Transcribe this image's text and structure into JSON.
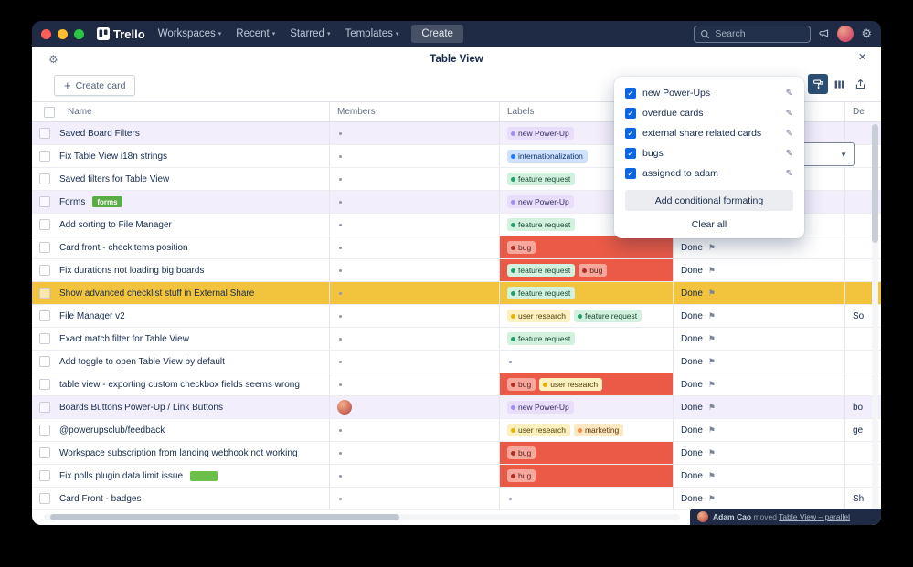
{
  "colors": {
    "accent_blue": "#0c66e4",
    "titlebar_navy": "#1f2b44",
    "cell_red": "#eb5a46",
    "row_yellow": "#f2c43d",
    "row_purple": "#f3eefc",
    "label_green": "#22a06b",
    "label_purple": "#9f8fef"
  },
  "navbar": {
    "app_name": "Trello",
    "items": [
      "Workspaces",
      "Recent",
      "Starred",
      "Templates"
    ],
    "create_label": "Create",
    "search_placeholder": "Search"
  },
  "view": {
    "title": "Table View",
    "create_card_label": "Create card"
  },
  "table": {
    "columns": {
      "name": "Name",
      "members": "Members",
      "labels": "Labels",
      "status": "",
      "desc": "De"
    },
    "rows": [
      {
        "name": "Saved Board Filters",
        "row_bg": "purple",
        "member": "dot",
        "labels": [
          {
            "text": "new Power-Up",
            "color": "purple"
          }
        ],
        "labels_bg": null,
        "status": "",
        "desc": ""
      },
      {
        "name": "Fix Table View i18n strings",
        "row_bg": null,
        "member": "dot",
        "labels": [
          {
            "text": "internationalization",
            "color": "blue"
          }
        ],
        "labels_bg": null,
        "status": "",
        "desc": ""
      },
      {
        "name": "Saved filters for Table View",
        "row_bg": null,
        "member": "dot",
        "labels": [
          {
            "text": "feature request",
            "color": "green"
          }
        ],
        "labels_bg": null,
        "status": "",
        "desc": ""
      },
      {
        "name": "Forms",
        "badge": "forms",
        "row_bg": "purple",
        "member": "dot",
        "labels": [
          {
            "text": "new Power-Up",
            "color": "purple"
          }
        ],
        "labels_bg": null,
        "status": "",
        "desc": ""
      },
      {
        "name": "Add sorting to File Manager",
        "row_bg": null,
        "member": "dot",
        "labels": [
          {
            "text": "feature request",
            "color": "green"
          }
        ],
        "labels_bg": null,
        "status": "",
        "desc": ""
      },
      {
        "name": "Card front - checkitems position",
        "row_bg": null,
        "member": "dot",
        "labels": [
          {
            "text": "bug",
            "color": "red"
          }
        ],
        "labels_bg": "red",
        "status": "Done",
        "desc": ""
      },
      {
        "name": "Fix durations not loading big boards",
        "row_bg": null,
        "member": "dot",
        "labels": [
          {
            "text": "feature request",
            "color": "green"
          },
          {
            "text": "bug",
            "color": "red"
          }
        ],
        "labels_bg": "red",
        "status": "Done",
        "desc": ""
      },
      {
        "name": "Show advanced checklist stuff in External Share",
        "row_bg": "yellow",
        "member": "dot",
        "labels": [
          {
            "text": "feature request",
            "color": "green"
          }
        ],
        "labels_bg": null,
        "status": "Done",
        "desc": ""
      },
      {
        "name": "File Manager v2",
        "row_bg": null,
        "member": "dot",
        "labels": [
          {
            "text": "user research",
            "color": "yellow"
          },
          {
            "text": "feature request",
            "color": "green"
          }
        ],
        "labels_bg": null,
        "status": "Done",
        "desc": "So"
      },
      {
        "name": "Exact match filter for Table View",
        "row_bg": null,
        "member": "dot",
        "labels": [
          {
            "text": "feature request",
            "color": "green"
          }
        ],
        "labels_bg": null,
        "status": "Done",
        "desc": ""
      },
      {
        "name": "Add toggle to open Table View by default",
        "row_bg": null,
        "member": "dot",
        "labels": [],
        "labels_bg": null,
        "status": "Done",
        "desc": ""
      },
      {
        "name": "table view - exporting custom checkbox fields seems wrong",
        "row_bg": null,
        "member": "dot",
        "labels": [
          {
            "text": "bug",
            "color": "red"
          },
          {
            "text": "user research",
            "color": "yellow"
          }
        ],
        "labels_bg": "red",
        "status": "Done",
        "desc": ""
      },
      {
        "name": "Boards Buttons Power-Up / Link Buttons",
        "row_bg": "purple",
        "member": "avatar",
        "labels": [
          {
            "text": "new Power-Up",
            "color": "purple"
          }
        ],
        "labels_bg": null,
        "status": "Done",
        "desc": "bo"
      },
      {
        "name": "@powerupsclub/feedback",
        "row_bg": null,
        "member": "dot",
        "labels": [
          {
            "text": "user research",
            "color": "yellow"
          },
          {
            "text": "marketing",
            "color": "orange"
          }
        ],
        "labels_bg": null,
        "status": "Done",
        "desc": "ge"
      },
      {
        "name": "Workspace subscription from landing webhook not working",
        "row_bg": null,
        "member": "dot",
        "labels": [
          {
            "text": "bug",
            "color": "red"
          }
        ],
        "labels_bg": "red",
        "status": "Done",
        "desc": ""
      },
      {
        "name": "Fix polls plugin data limit issue",
        "badge": "block",
        "row_bg": null,
        "member": "dot",
        "labels": [
          {
            "text": "bug",
            "color": "red"
          }
        ],
        "labels_bg": "red",
        "status": "Done",
        "desc": ""
      },
      {
        "name": "Card Front - badges",
        "row_bg": null,
        "member": "dot",
        "labels": [],
        "labels_bg": null,
        "status": "Done",
        "desc": "Sh"
      }
    ]
  },
  "popup": {
    "items": [
      {
        "label": "new Power-Ups",
        "checked": true
      },
      {
        "label": "overdue cards",
        "checked": true
      },
      {
        "label": "external share related cards",
        "checked": true
      },
      {
        "label": "bugs",
        "checked": true
      },
      {
        "label": "assigned to adam",
        "checked": true
      }
    ],
    "add_button_label": "Add conditional formating",
    "clear_all_label": "Clear all"
  },
  "toast": {
    "user": "Adam Cao",
    "action": "moved",
    "target": "Table View – parallel"
  }
}
